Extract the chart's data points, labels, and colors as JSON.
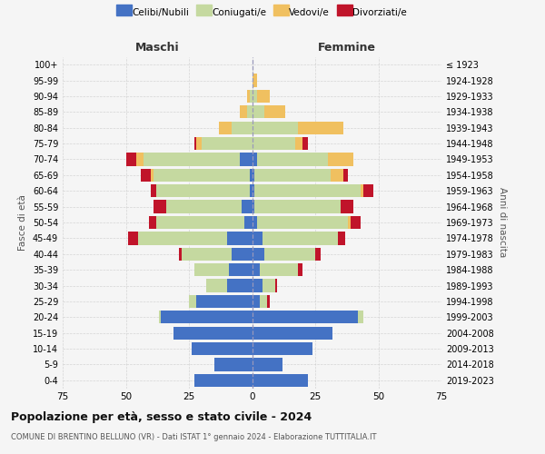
{
  "age_groups": [
    "0-4",
    "5-9",
    "10-14",
    "15-19",
    "20-24",
    "25-29",
    "30-34",
    "35-39",
    "40-44",
    "45-49",
    "50-54",
    "55-59",
    "60-64",
    "65-69",
    "70-74",
    "75-79",
    "80-84",
    "85-89",
    "90-94",
    "95-99",
    "100+"
  ],
  "birth_years": [
    "2019-2023",
    "2014-2018",
    "2009-2013",
    "2004-2008",
    "1999-2003",
    "1994-1998",
    "1989-1993",
    "1984-1988",
    "1979-1983",
    "1974-1978",
    "1969-1973",
    "1964-1968",
    "1959-1963",
    "1954-1958",
    "1949-1953",
    "1944-1948",
    "1939-1943",
    "1934-1938",
    "1929-1933",
    "1924-1928",
    "≤ 1923"
  ],
  "colors": {
    "celibi": "#4472C4",
    "coniugati": "#C5D9A0",
    "vedovi": "#F0C060",
    "divorziati": "#C0142A"
  },
  "males": {
    "celibi": [
      23,
      15,
      24,
      31,
      36,
      22,
      10,
      9,
      8,
      10,
      3,
      4,
      1,
      1,
      5,
      0,
      0,
      0,
      0,
      0,
      0
    ],
    "coniugati": [
      0,
      0,
      0,
      0,
      1,
      3,
      8,
      14,
      20,
      35,
      35,
      30,
      37,
      38,
      38,
      20,
      8,
      2,
      1,
      0,
      0
    ],
    "vedovi": [
      0,
      0,
      0,
      0,
      0,
      0,
      0,
      0,
      0,
      0,
      0,
      0,
      0,
      1,
      3,
      2,
      5,
      3,
      1,
      0,
      0
    ],
    "divorziati": [
      0,
      0,
      0,
      0,
      0,
      0,
      0,
      0,
      1,
      4,
      3,
      5,
      2,
      4,
      4,
      1,
      0,
      0,
      0,
      0,
      0
    ]
  },
  "females": {
    "nubili": [
      22,
      12,
      24,
      32,
      42,
      3,
      4,
      3,
      5,
      4,
      2,
      1,
      1,
      1,
      2,
      0,
      0,
      0,
      0,
      0,
      0
    ],
    "coniugate": [
      0,
      0,
      0,
      0,
      2,
      3,
      5,
      15,
      20,
      30,
      36,
      34,
      42,
      30,
      28,
      17,
      18,
      5,
      2,
      0,
      0
    ],
    "vedove": [
      0,
      0,
      0,
      0,
      0,
      0,
      0,
      0,
      0,
      0,
      1,
      0,
      1,
      5,
      10,
      3,
      18,
      8,
      5,
      2,
      0
    ],
    "divorziate": [
      0,
      0,
      0,
      0,
      0,
      1,
      1,
      2,
      2,
      3,
      4,
      5,
      4,
      2,
      0,
      2,
      0,
      0,
      0,
      0,
      0
    ]
  },
  "xlim": 75,
  "title": "Popolazione per età, sesso e stato civile - 2024",
  "subtitle": "COMUNE DI BRENTINO BELLUNO (VR) - Dati ISTAT 1° gennaio 2024 - Elaborazione TUTTITALIA.IT",
  "xlabel_left": "Maschi",
  "xlabel_right": "Femmine",
  "ylabel_left": "Fasce di età",
  "ylabel_right": "Anni di nascita",
  "bg_color": "#F5F5F5",
  "grid_color": "#CCCCCC"
}
